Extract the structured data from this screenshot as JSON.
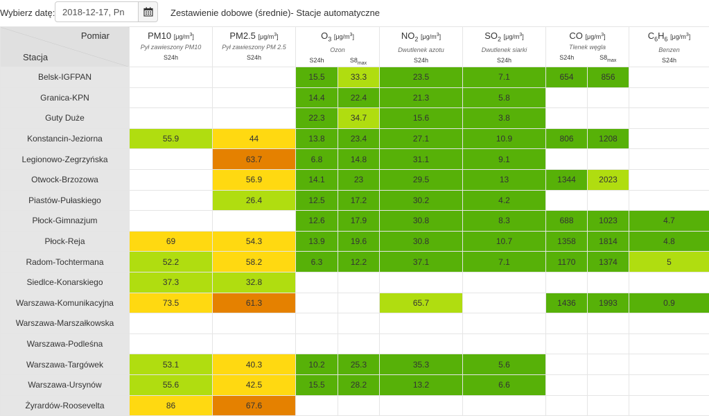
{
  "header": {
    "date_label": "Wybierz datę:",
    "date_value": "2018-12-17, Pn",
    "calendar_icon": "calendar-icon",
    "title": "Zestawienie dobowe (średnie)- Stacje automatyczne"
  },
  "table": {
    "corner_top": "Pomiar",
    "corner_bottom": "Stacja",
    "pollutants": [
      {
        "key": "pm10",
        "name": "PM10",
        "sub": "",
        "unit": "[μg/m³]",
        "desc": "Pył zawieszony PM10",
        "aggs": [
          "S24h"
        ]
      },
      {
        "key": "pm25",
        "name": "PM2.5",
        "sub": "",
        "unit": "[μg/m³]",
        "desc": "Pył zawieszony PM 2.5",
        "aggs": [
          "S24h"
        ]
      },
      {
        "key": "o3",
        "name": "O",
        "sub": "3",
        "unit": "[μg/m³]",
        "desc": "Ozon",
        "aggs": [
          "S24h",
          "S8max"
        ]
      },
      {
        "key": "no2",
        "name": "NO",
        "sub": "2",
        "unit": "[μg/m³]",
        "desc": "Dwutlenek azotu",
        "aggs": [
          "S24h"
        ]
      },
      {
        "key": "so2",
        "name": "SO",
        "sub": "2",
        "unit": "[μg/m³]",
        "desc": "Dwutlenek siarki",
        "aggs": [
          "S24h"
        ]
      },
      {
        "key": "co",
        "name": "CO",
        "sub": "",
        "unit": "[μg/m³]",
        "desc": "Tlenek węgla",
        "aggs": [
          "S24h",
          "S8max"
        ]
      },
      {
        "key": "c6h6",
        "name": "C6H6",
        "sub": "",
        "unit": "[μg/m³]",
        "desc": "Benzen",
        "aggs": [
          "S24h"
        ]
      }
    ],
    "colors": {
      "g": "#57b108",
      "lg": "#b0dd10",
      "y": "#ffd911",
      "o": "#e58100"
    },
    "rows": [
      {
        "station": "Belsk-IGFPAN",
        "cells": [
          [
            "",
            ""
          ],
          [
            "",
            ""
          ],
          [
            "15.5",
            "g"
          ],
          [
            "33.3",
            "lg"
          ],
          [
            "23.5",
            "g"
          ],
          [
            "7.1",
            "g"
          ],
          [
            "654",
            "g"
          ],
          [
            "856",
            "g"
          ],
          [
            "",
            ""
          ]
        ]
      },
      {
        "station": "Granica-KPN",
        "cells": [
          [
            "",
            ""
          ],
          [
            "",
            ""
          ],
          [
            "14.4",
            "g"
          ],
          [
            "22.4",
            "g"
          ],
          [
            "21.3",
            "g"
          ],
          [
            "5.8",
            "g"
          ],
          [
            "",
            ""
          ],
          [
            "",
            ""
          ],
          [
            "",
            ""
          ]
        ]
      },
      {
        "station": "Guty Duże",
        "cells": [
          [
            "",
            ""
          ],
          [
            "",
            ""
          ],
          [
            "22.3",
            "g"
          ],
          [
            "34.7",
            "lg"
          ],
          [
            "15.6",
            "g"
          ],
          [
            "3.8",
            "g"
          ],
          [
            "",
            ""
          ],
          [
            "",
            ""
          ],
          [
            "",
            ""
          ]
        ]
      },
      {
        "station": "Konstancin-Jeziorna",
        "cells": [
          [
            "55.9",
            "lg"
          ],
          [
            "44",
            "y"
          ],
          [
            "13.8",
            "g"
          ],
          [
            "23.4",
            "g"
          ],
          [
            "27.1",
            "g"
          ],
          [
            "10.9",
            "g"
          ],
          [
            "806",
            "g"
          ],
          [
            "1208",
            "g"
          ],
          [
            "",
            ""
          ]
        ]
      },
      {
        "station": "Legionowo-Zegrzyńska",
        "cells": [
          [
            "",
            ""
          ],
          [
            "63.7",
            "o"
          ],
          [
            "6.8",
            "g"
          ],
          [
            "14.8",
            "g"
          ],
          [
            "31.1",
            "g"
          ],
          [
            "9.1",
            "g"
          ],
          [
            "",
            ""
          ],
          [
            "",
            ""
          ],
          [
            "",
            ""
          ]
        ]
      },
      {
        "station": "Otwock-Brzozowa",
        "cells": [
          [
            "",
            ""
          ],
          [
            "56.9",
            "y"
          ],
          [
            "14.1",
            "g"
          ],
          [
            "23",
            "g"
          ],
          [
            "29.5",
            "g"
          ],
          [
            "13",
            "g"
          ],
          [
            "1344",
            "g"
          ],
          [
            "2023",
            "lg"
          ],
          [
            "",
            ""
          ]
        ]
      },
      {
        "station": "Piastów-Pułaskiego",
        "cells": [
          [
            "",
            ""
          ],
          [
            "26.4",
            "lg"
          ],
          [
            "12.5",
            "g"
          ],
          [
            "17.2",
            "g"
          ],
          [
            "30.2",
            "g"
          ],
          [
            "4.2",
            "g"
          ],
          [
            "",
            ""
          ],
          [
            "",
            ""
          ],
          [
            "",
            ""
          ]
        ]
      },
      {
        "station": "Płock-Gimnazjum",
        "cells": [
          [
            "",
            ""
          ],
          [
            "",
            ""
          ],
          [
            "12.6",
            "g"
          ],
          [
            "17.9",
            "g"
          ],
          [
            "30.8",
            "g"
          ],
          [
            "8.3",
            "g"
          ],
          [
            "688",
            "g"
          ],
          [
            "1023",
            "g"
          ],
          [
            "4.7",
            "g"
          ]
        ]
      },
      {
        "station": "Płock-Reja",
        "cells": [
          [
            "69",
            "y"
          ],
          [
            "54.3",
            "y"
          ],
          [
            "13.9",
            "g"
          ],
          [
            "19.6",
            "g"
          ],
          [
            "30.8",
            "g"
          ],
          [
            "10.7",
            "g"
          ],
          [
            "1358",
            "g"
          ],
          [
            "1814",
            "g"
          ],
          [
            "4.8",
            "g"
          ]
        ]
      },
      {
        "station": "Radom-Tochtermana",
        "cells": [
          [
            "52.2",
            "lg"
          ],
          [
            "58.2",
            "y"
          ],
          [
            "6.3",
            "g"
          ],
          [
            "12.2",
            "g"
          ],
          [
            "37.1",
            "g"
          ],
          [
            "7.1",
            "g"
          ],
          [
            "1170",
            "g"
          ],
          [
            "1374",
            "g"
          ],
          [
            "5",
            "lg"
          ]
        ]
      },
      {
        "station": "Siedlce-Konarskiego",
        "cells": [
          [
            "37.3",
            "lg"
          ],
          [
            "32.8",
            "lg"
          ],
          [
            "",
            ""
          ],
          [
            "",
            ""
          ],
          [
            "",
            ""
          ],
          [
            "",
            ""
          ],
          [
            "",
            ""
          ],
          [
            "",
            ""
          ],
          [
            "",
            ""
          ]
        ]
      },
      {
        "station": "Warszawa-Komunikacyjna",
        "cells": [
          [
            "73.5",
            "y"
          ],
          [
            "61.3",
            "o"
          ],
          [
            "",
            ""
          ],
          [
            "",
            ""
          ],
          [
            "65.7",
            "lg"
          ],
          [
            "",
            ""
          ],
          [
            "1436",
            "g"
          ],
          [
            "1993",
            "g"
          ],
          [
            "0.9",
            "g"
          ]
        ]
      },
      {
        "station": "Warszawa-Marszałkowska",
        "cells": [
          [
            "",
            ""
          ],
          [
            "",
            ""
          ],
          [
            "",
            ""
          ],
          [
            "",
            ""
          ],
          [
            "",
            ""
          ],
          [
            "",
            ""
          ],
          [
            "",
            ""
          ],
          [
            "",
            ""
          ],
          [
            "",
            ""
          ]
        ]
      },
      {
        "station": "Warszawa-Podleśna",
        "cells": [
          [
            "",
            ""
          ],
          [
            "",
            ""
          ],
          [
            "",
            ""
          ],
          [
            "",
            ""
          ],
          [
            "",
            ""
          ],
          [
            "",
            ""
          ],
          [
            "",
            ""
          ],
          [
            "",
            ""
          ],
          [
            "",
            ""
          ]
        ]
      },
      {
        "station": "Warszawa-Targówek",
        "cells": [
          [
            "53.1",
            "lg"
          ],
          [
            "40.3",
            "y"
          ],
          [
            "10.2",
            "g"
          ],
          [
            "25.3",
            "g"
          ],
          [
            "35.3",
            "g"
          ],
          [
            "5.6",
            "g"
          ],
          [
            "",
            ""
          ],
          [
            "",
            ""
          ],
          [
            "",
            ""
          ]
        ]
      },
      {
        "station": "Warszawa-Ursynów",
        "cells": [
          [
            "55.6",
            "lg"
          ],
          [
            "42.5",
            "y"
          ],
          [
            "15.5",
            "g"
          ],
          [
            "28.2",
            "g"
          ],
          [
            "13.2",
            "g"
          ],
          [
            "6.6",
            "g"
          ],
          [
            "",
            ""
          ],
          [
            "",
            ""
          ],
          [
            "",
            ""
          ]
        ]
      },
      {
        "station": "Żyrardów-Roosevelta",
        "cells": [
          [
            "86",
            "y"
          ],
          [
            "67.6",
            "o"
          ],
          [
            "",
            ""
          ],
          [
            "",
            ""
          ],
          [
            "",
            ""
          ],
          [
            "",
            ""
          ],
          [
            "",
            ""
          ],
          [
            "",
            ""
          ],
          [
            "",
            ""
          ]
        ]
      }
    ]
  }
}
